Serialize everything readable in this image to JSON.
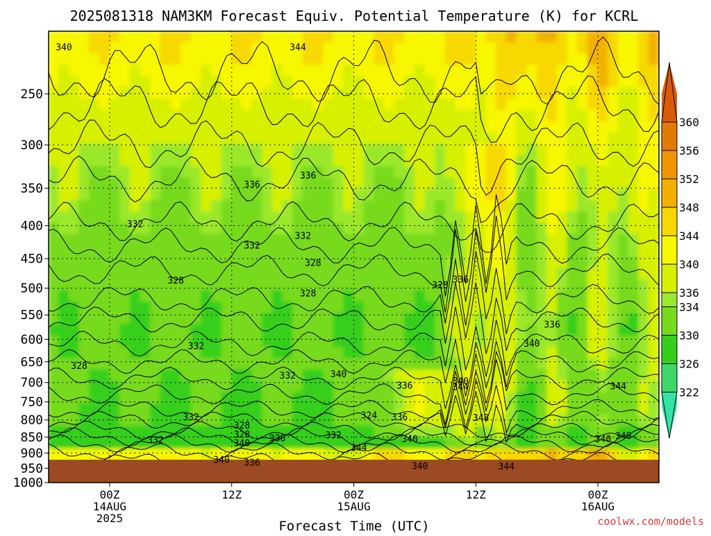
{
  "chart_data": {
    "type": "heatmap",
    "title": "2025081318 NAM3KM Forecast Equiv. Potential Temperature (K) for KCRL",
    "xlabel": "Forecast Time (UTC)",
    "ylabel": "",
    "credit": "coolwx.com/models",
    "x_ticks": [
      {
        "hour": 6,
        "lines": [
          "00Z",
          "14AUG",
          "2025"
        ]
      },
      {
        "hour": 18,
        "lines": [
          "12Z"
        ]
      },
      {
        "hour": 30,
        "lines": [
          "00Z",
          "15AUG"
        ]
      },
      {
        "hour": 42,
        "lines": [
          "12Z"
        ]
      },
      {
        "hour": 54,
        "lines": [
          "00Z",
          "16AUG"
        ]
      }
    ],
    "xlim": [
      0,
      60
    ],
    "y_ticks": [
      250,
      300,
      350,
      400,
      450,
      500,
      550,
      600,
      650,
      700,
      750,
      800,
      850,
      900,
      950,
      1000
    ],
    "ylim_hpa": [
      200,
      1000
    ],
    "surface_pressure_hpa": 965,
    "colorbar": {
      "ticks": [
        322,
        326,
        330,
        334,
        336,
        340,
        344,
        348,
        352,
        356,
        360
      ],
      "bands": [
        {
          "from": 320,
          "to": 322,
          "color": "#34e3a4"
        },
        {
          "from": 322,
          "to": 326,
          "color": "#3fd66a"
        },
        {
          "from": 326,
          "to": 330,
          "color": "#34cf1c"
        },
        {
          "from": 330,
          "to": 334,
          "color": "#77da1c"
        },
        {
          "from": 334,
          "to": 336,
          "color": "#9be82c"
        },
        {
          "from": 336,
          "to": 340,
          "color": "#d6f000"
        },
        {
          "from": 340,
          "to": 344,
          "color": "#f7f700"
        },
        {
          "from": 344,
          "to": 348,
          "color": "#f7d800"
        },
        {
          "from": 348,
          "to": 352,
          "color": "#f2b100"
        },
        {
          "from": 352,
          "to": 356,
          "color": "#ef9500"
        },
        {
          "from": 356,
          "to": 360,
          "color": "#e37a05"
        },
        {
          "from": 360,
          "to": 364,
          "color": "#d85c0c"
        }
      ]
    },
    "contour_labels": [
      {
        "hour": 1.5,
        "p": 212,
        "text": "340"
      },
      {
        "hour": 24.5,
        "p": 212,
        "text": "344"
      },
      {
        "hour": 25.5,
        "p": 335,
        "text": "336"
      },
      {
        "hour": 20,
        "p": 346,
        "text": "336"
      },
      {
        "hour": 8.5,
        "p": 398,
        "text": "332"
      },
      {
        "hour": 25,
        "p": 415,
        "text": "332"
      },
      {
        "hour": 20,
        "p": 430,
        "text": "332"
      },
      {
        "hour": 26,
        "p": 457,
        "text": "328"
      },
      {
        "hour": 12.5,
        "p": 487,
        "text": "328"
      },
      {
        "hour": 25.5,
        "p": 510,
        "text": "328"
      },
      {
        "hour": 38.5,
        "p": 495,
        "text": "328"
      },
      {
        "hour": 40.5,
        "p": 485,
        "text": "336"
      },
      {
        "hour": 14.5,
        "p": 615,
        "text": "332"
      },
      {
        "hour": 3,
        "p": 660,
        "text": "328"
      },
      {
        "hour": 23.5,
        "p": 683,
        "text": "332"
      },
      {
        "hour": 28.5,
        "p": 680,
        "text": "340"
      },
      {
        "hour": 40.5,
        "p": 697,
        "text": "340"
      },
      {
        "hour": 35,
        "p": 708,
        "text": "336"
      },
      {
        "hour": 40.5,
        "p": 712,
        "text": "344"
      },
      {
        "hour": 49.5,
        "p": 570,
        "text": "336"
      },
      {
        "hour": 47.5,
        "p": 610,
        "text": "340"
      },
      {
        "hour": 56,
        "p": 710,
        "text": "344"
      },
      {
        "hour": 14,
        "p": 793,
        "text": "332"
      },
      {
        "hour": 31.5,
        "p": 788,
        "text": "324"
      },
      {
        "hour": 34.5,
        "p": 793,
        "text": "336"
      },
      {
        "hour": 42.5,
        "p": 795,
        "text": "348"
      },
      {
        "hour": 19,
        "p": 816,
        "text": "328"
      },
      {
        "hour": 19,
        "p": 843,
        "text": "328"
      },
      {
        "hour": 22.5,
        "p": 855,
        "text": "336"
      },
      {
        "hour": 28,
        "p": 845,
        "text": "332"
      },
      {
        "hour": 10.5,
        "p": 860,
        "text": "332"
      },
      {
        "hour": 19,
        "p": 870,
        "text": "340"
      },
      {
        "hour": 35.5,
        "p": 857,
        "text": "340"
      },
      {
        "hour": 54.5,
        "p": 857,
        "text": "340"
      },
      {
        "hour": 56.5,
        "p": 847,
        "text": "348"
      },
      {
        "hour": 30.5,
        "p": 884,
        "text": "344"
      },
      {
        "hour": 17,
        "p": 923,
        "text": "340"
      },
      {
        "hour": 20,
        "p": 932,
        "text": "336"
      },
      {
        "hour": 36.5,
        "p": 943,
        "text": "340"
      },
      {
        "hour": 45,
        "p": 945,
        "text": "344"
      }
    ]
  }
}
